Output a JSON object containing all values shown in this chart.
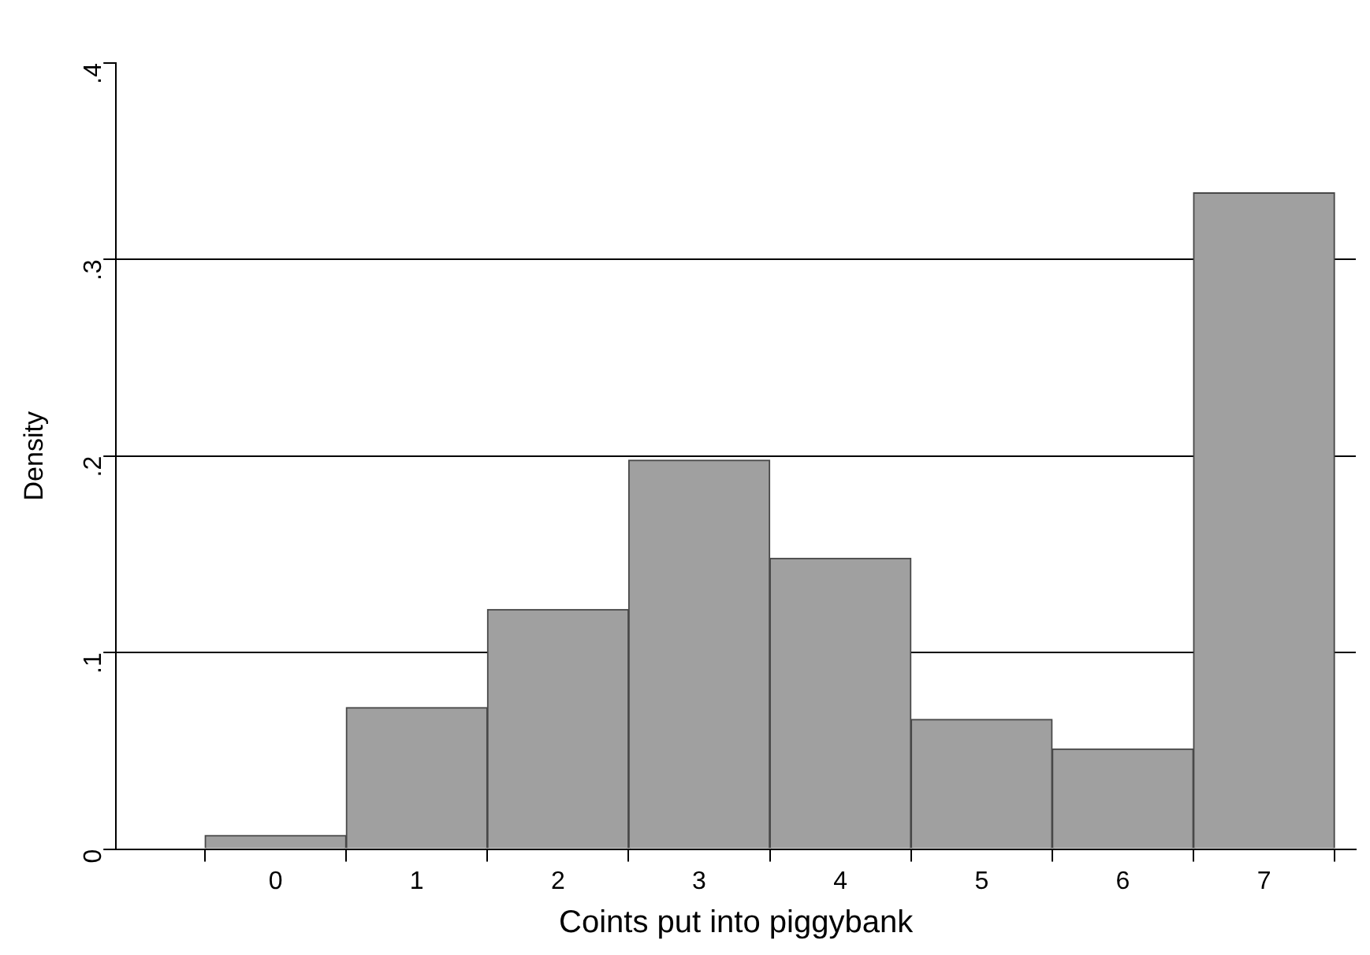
{
  "chart_data": {
    "type": "histogram",
    "xlabel": "Coints put into piggybank",
    "ylabel": "Density",
    "bins": [
      -0.5,
      0.5,
      1.5,
      2.5,
      3.5,
      4.5,
      5.5,
      6.5,
      7.5
    ],
    "values": [
      0.007,
      0.072,
      0.122,
      0.198,
      0.148,
      0.066,
      0.051,
      0.334
    ],
    "color": "#a0a0a0",
    "xlim": [
      -1.13,
      7.65
    ],
    "xticks": [
      0,
      1,
      2,
      3,
      4,
      5,
      6,
      7
    ],
    "ylim": [
      0,
      0.4
    ],
    "yticks": [
      0,
      {
        "value": 0.1,
        "label": ".1"
      },
      {
        "value": 0.2,
        "label": ".2"
      },
      {
        "value": 0.3,
        "label": ".3"
      },
      {
        "value": 0.4,
        "label": ".4"
      }
    ],
    "grid": "y",
    "legend": false
  }
}
